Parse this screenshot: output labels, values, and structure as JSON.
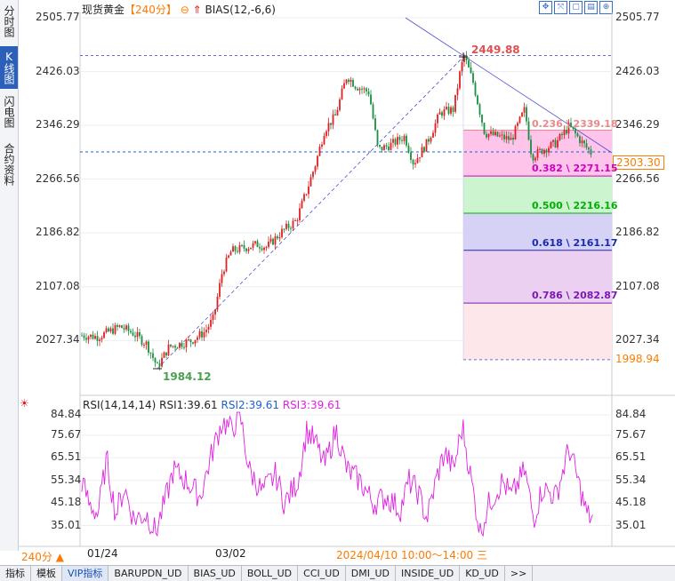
{
  "sidebar": {
    "tabs": [
      {
        "label": "分时图",
        "active": false
      },
      {
        "label": "K线图",
        "active": true
      },
      {
        "label": "闪电图",
        "active": false
      },
      {
        "label": "合约资料",
        "active": false
      }
    ]
  },
  "header": {
    "title": "现货黄金",
    "period": "【240分】",
    "indicator": "BIAS(12,-6,6)"
  },
  "toolbar": {
    "icons": [
      "expand-icon",
      "move-icon",
      "window-icon",
      "book-icon",
      "zoom-icon"
    ]
  },
  "chart_data": [
    {
      "type": "candlestick",
      "yticks": [
        2505.77,
        2426.03,
        2346.29,
        2266.56,
        2186.82,
        2107.08,
        2027.34
      ],
      "ylim": [
        1998.94,
        2505.77
      ],
      "x_labels": [
        "01/24",
        "03/02"
      ],
      "cursor_time": "2024/04/10 10:00～14:00 三",
      "current_price": "2303.30",
      "low_marker": "1984.12",
      "high_marker": "2449.88",
      "bottom_level": "1998.94",
      "fibonacci": [
        {
          "ratio": "0.236",
          "price": "2339.18",
          "label": "0.236 \\ 2339.18",
          "color": "#e88a8a"
        },
        {
          "ratio": "0.382",
          "price": "2271.15",
          "label": "0.382 \\ 2271.15",
          "color": "#d000c0"
        },
        {
          "ratio": "0.500",
          "price": "2216.16",
          "label": "0.500 \\ 2216.16",
          "color": "#00b000"
        },
        {
          "ratio": "0.618",
          "price": "2161.17",
          "label": "0.618 \\ 2161.17",
          "color": "#1a2ab0"
        },
        {
          "ratio": "0.786",
          "price": "2082.87",
          "label": "0.786 \\ 2082.87",
          "color": "#7a1ab0"
        }
      ],
      "colors": {
        "up": "#e02020",
        "down": "#189040",
        "trend": "#4040d0"
      }
    },
    {
      "type": "line",
      "title": "RSI(14,14,14)",
      "series": [
        {
          "name": "RSI1",
          "value": "RSI1:39.61",
          "color": "#222222"
        },
        {
          "name": "RSI2",
          "value": "RSI2:39.61",
          "color": "#2060d0"
        },
        {
          "name": "RSI3",
          "value": "RSI3:39.61",
          "color": "#e020e0"
        }
      ],
      "yticks": [
        84.84,
        75.67,
        65.51,
        55.34,
        45.18,
        35.01
      ],
      "ylim": [
        30,
        90
      ]
    }
  ],
  "footer": {
    "period_label": "240分 ▲",
    "tabs": [
      "指标",
      "模板",
      "VIP指标",
      "BARUPDN_UD",
      "BIAS_UD",
      "BOLL_UD",
      "CCI_UD",
      "DMI_UD",
      "INSIDE_UD",
      "KD_UD",
      ">>"
    ]
  }
}
